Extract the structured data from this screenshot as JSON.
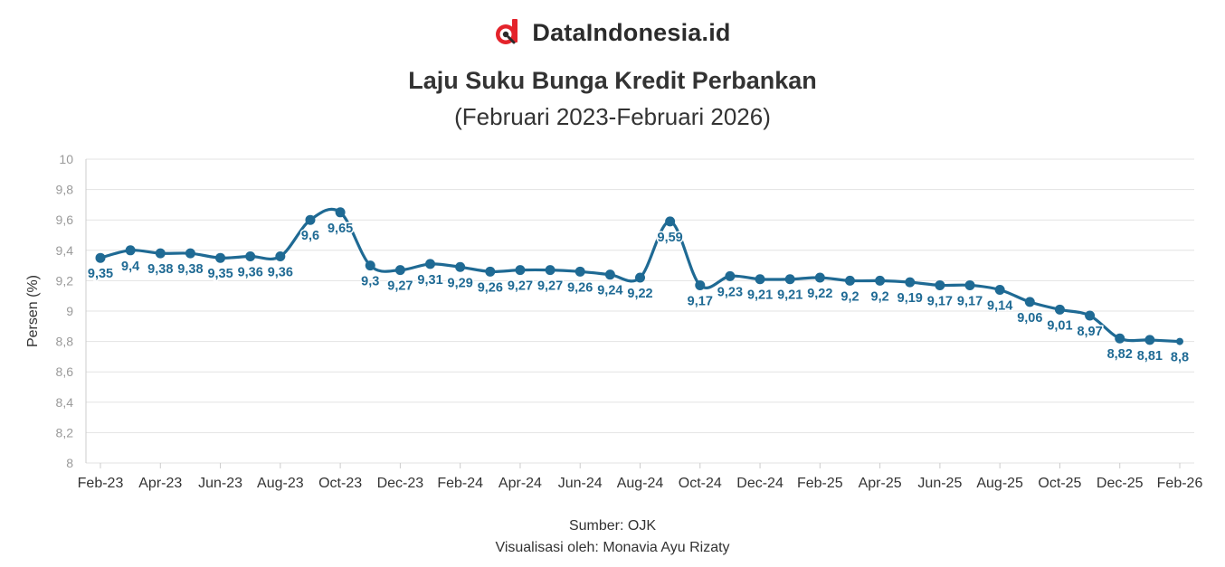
{
  "brand": {
    "name": "DataIndonesia.id",
    "logo_icon": "dataindonesia-logo-icon",
    "accent": "#e4232b"
  },
  "footer": {
    "source": "Sumber: OJK",
    "credit": "Visualisasi oleh: Monavia Ayu Rizaty"
  },
  "chart_data": {
    "type": "line",
    "title": "Laju Suku Bunga Kredit Perbankan",
    "subtitle": "(Februari 2023-Februari 2026)",
    "xlabel": "",
    "ylabel": "Persen (%)",
    "ylim": [
      8,
      10
    ],
    "yticks": [
      "8",
      "8,2",
      "8,4",
      "8,6",
      "8,8",
      "9",
      "9,2",
      "9,4",
      "9,6",
      "9,8",
      "10"
    ],
    "xtick_labels": [
      "Feb-23",
      "Apr-23",
      "Jun-23",
      "Aug-23",
      "Oct-23",
      "Dec-23",
      "Feb-24",
      "Apr-24",
      "Jun-24",
      "Aug-24",
      "Oct-24",
      "Dec-24",
      "Feb-25",
      "Apr-25",
      "Jun-25",
      "Aug-25",
      "Oct-25",
      "Dec-25",
      "Feb-26"
    ],
    "line_color": "#1f6a94",
    "grid": true,
    "series": [
      {
        "name": "Suku Bunga Kredit",
        "values": [
          9.35,
          9.4,
          9.38,
          9.38,
          9.35,
          9.36,
          9.36,
          9.6,
          9.65,
          9.3,
          9.27,
          9.31,
          9.29,
          9.26,
          9.27,
          9.27,
          9.26,
          9.24,
          9.22,
          9.59,
          9.17,
          9.23,
          9.21,
          9.21,
          9.22,
          9.2,
          9.2,
          9.19,
          9.17,
          9.17,
          9.14,
          9.06,
          9.01,
          8.97,
          8.82,
          8.81,
          8.8
        ],
        "labels": [
          "9,35",
          "9,4",
          "9,38",
          "9,38",
          "9,35",
          "9,36",
          "9,36",
          "9,6",
          "9,65",
          "9,3",
          "9,27",
          "9,31",
          "9,29",
          "9,26",
          "9,27",
          "9,27",
          "9,26",
          "9,24",
          "9,22",
          "9,59",
          "9,17",
          "9,23",
          "9,21",
          "9,21",
          "9,22",
          "9,2",
          "9,2",
          "9,19",
          "9,17",
          "9,17",
          "9,14",
          "9,06",
          "9,01",
          "8,97",
          "8,82",
          "8,81",
          "8,8"
        ]
      }
    ]
  }
}
